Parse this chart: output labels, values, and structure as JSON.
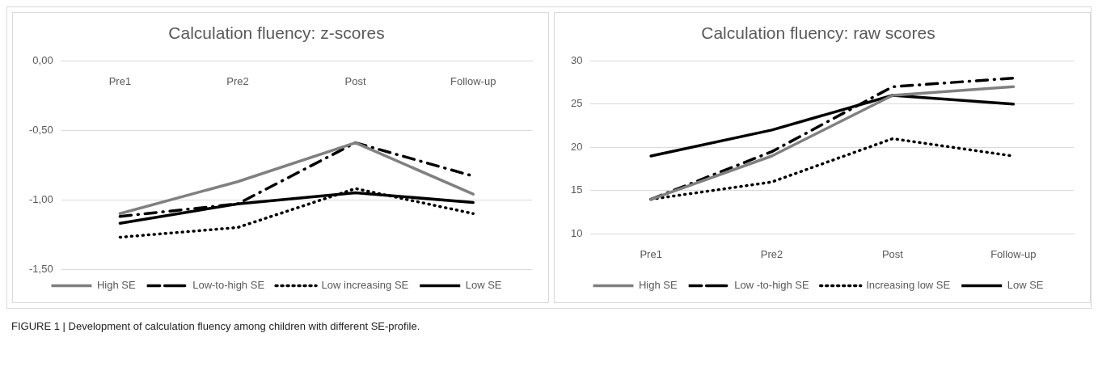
{
  "chart_data": [
    {
      "type": "line",
      "title": "Calculation fluency: z-scores",
      "categories": [
        "Pre1",
        "Pre2",
        "Post",
        "Follow-up"
      ],
      "ylim": [
        -1.5,
        0
      ],
      "yticks": [
        {
          "value": -1.5,
          "label": "-1,50"
        },
        {
          "value": -1,
          "label": "-1,00"
        },
        {
          "value": -0.5,
          "label": "-0,50"
        },
        {
          "value": 0,
          "label": "0,00"
        }
      ],
      "grid": "y",
      "legend": "bottom",
      "marker": "none",
      "annotations": [
        "FIGURE 1 | Development of calculation fluency among children with different SE-profile."
      ],
      "series": [
        {
          "name": "High SE",
          "color": "#808080",
          "line_style": "solid",
          "values": [
            -1.1,
            -0.87,
            -0.59,
            -0.96
          ]
        },
        {
          "name": "Low-to-high SE",
          "color": "#000000",
          "line_style": "dashdot",
          "values": [
            -1.12,
            -1.03,
            -0.59,
            -0.83
          ]
        },
        {
          "name": "Low increasing SE",
          "color": "#000000",
          "line_style": "dotted",
          "values": [
            -1.27,
            -1.2,
            -0.92,
            -1.1
          ]
        },
        {
          "name": "Low SE",
          "color": "#000000",
          "line_style": "solid",
          "values": [
            -1.17,
            -1.03,
            -0.95,
            -1.02
          ]
        }
      ]
    },
    {
      "type": "line",
      "title": "Calculation fluency: raw scores",
      "categories": [
        "Pre1",
        "Pre2",
        "Post",
        "Follow-up"
      ],
      "ylim": [
        10,
        30
      ],
      "yticks": [
        10,
        15,
        20,
        25,
        30
      ],
      "grid": "y",
      "legend": "bottom",
      "marker": "none",
      "series": [
        {
          "name": "High SE",
          "color": "#808080",
          "line_style": "solid",
          "values": [
            14,
            19,
            26,
            27
          ]
        },
        {
          "name": "Low -to-high SE",
          "color": "#000000",
          "line_style": "dashdot",
          "values": [
            14,
            19.5,
            27,
            28
          ]
        },
        {
          "name": "Increasing low SE",
          "color": "#000000",
          "line_style": "dotted",
          "values": [
            14,
            16,
            21,
            19
          ]
        },
        {
          "name": "Low SE",
          "color": "#000000",
          "line_style": "solid",
          "values": [
            19,
            22,
            26,
            25
          ]
        }
      ]
    }
  ]
}
